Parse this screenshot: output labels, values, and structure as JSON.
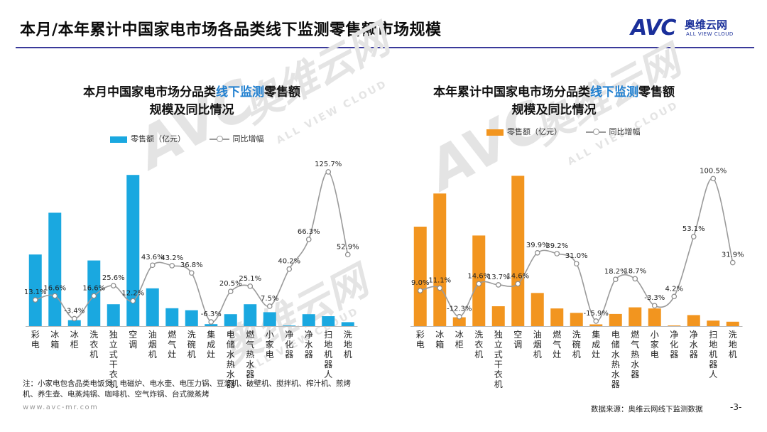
{
  "header": {
    "title": "本月/本年累计中国家电市场各品类线下监测零售额市场规模",
    "logo_mark": "AVC",
    "logo_cn": "奥维云网",
    "logo_en": "ALL VIEW CLOUD"
  },
  "watermark": {
    "mark": "AVC",
    "cn": "奥维云网",
    "en": "ALL VIEW CLOUD"
  },
  "legend": {
    "bar_label": "零售额（亿元）",
    "line_label": "同比增幅"
  },
  "chart_data": [
    {
      "type": "bar",
      "title_prefix": "本月中国家电市场分品类",
      "title_highlight": "线下监测",
      "title_suffix": "零售额",
      "title_line2": "规模及同比情况",
      "bar_color": "#1aa8e0",
      "line_color": "#9a9a9a",
      "categories": [
        "彩电",
        "冰箱",
        "冰柜",
        "洗衣机",
        "独立式干衣机",
        "空调",
        "油烟机",
        "燃气灶",
        "洗碗机",
        "集成灶",
        "电储水热水器",
        "燃气热水器",
        "小家电",
        "净化器",
        "净水器",
        "扫地机器人",
        "洗地机"
      ],
      "series": [
        {
          "name": "零售额（亿元）",
          "kind": "bar",
          "values": [
            36,
            57,
            3,
            33,
            11,
            76,
            19,
            9,
            8,
            1,
            6,
            11,
            7,
            0.3,
            6,
            5,
            2
          ]
        },
        {
          "name": "同比增幅",
          "kind": "line",
          "values": [
            13.1,
            16.6,
            -3.4,
            16.6,
            25.6,
            12.2,
            43.6,
            43.2,
            36.8,
            -6.3,
            20.5,
            25.1,
            7.5,
            40.2,
            66.3,
            125.7,
            52.9
          ],
          "labels": [
            "13.1%",
            "16.6%",
            "-3.4%",
            "16.6%",
            "25.6%",
            "12.2%",
            "43.6%",
            "43.2%",
            "36.8%",
            "-6.3%",
            "20.5%",
            "25.1%",
            "7.5%",
            "40.2%",
            "66.3%",
            "125.7%",
            "52.9%"
          ]
        }
      ],
      "ylim_bar": [
        0,
        80
      ],
      "ylim_line": [
        -10,
        130
      ]
    },
    {
      "type": "bar",
      "title_prefix": "本年累计中国家电市场分品类",
      "title_highlight": "线下监测",
      "title_suffix": "零售额",
      "title_line2": "规模及同比情况",
      "bar_color": "#f2951f",
      "line_color": "#9a9a9a",
      "categories": [
        "彩电",
        "冰箱",
        "冰柜",
        "洗衣机",
        "独立式干衣机",
        "空调",
        "油烟机",
        "燃气灶",
        "洗碗机",
        "集成灶",
        "电储水热水器",
        "燃气热水器",
        "小家电",
        "净化器",
        "净水器",
        "扫地机器人",
        "洗地机"
      ],
      "series": [
        {
          "name": "零售额（亿元）",
          "kind": "bar",
          "values": [
            450,
            600,
            40,
            410,
            90,
            680,
            150,
            80,
            60,
            8,
            55,
            85,
            80,
            3,
            50,
            25,
            20
          ]
        },
        {
          "name": "同比增幅",
          "kind": "line",
          "values": [
            9.0,
            11.1,
            -12.3,
            14.6,
            13.7,
            14.6,
            39.9,
            39.2,
            31.0,
            -15.9,
            18.2,
            18.7,
            -3.3,
            4.2,
            53.1,
            100.5,
            31.9
          ],
          "labels": [
            "9.0%",
            "11.1%",
            "-12.3%",
            "14.6%",
            "13.7%",
            "14.6%",
            "39.9%",
            "39.2%",
            "31.0%",
            "-15.9%",
            "18.2%",
            "18.7%",
            "-3.3%",
            "4.2%",
            "53.1%",
            "100.5%",
            "31.9%"
          ]
        }
      ],
      "ylim_bar": [
        0,
        720
      ],
      "ylim_line": [
        -20,
        110
      ]
    }
  ],
  "footnote": "注：小家电包含品类电饭煲、电磁炉、电水壶、电压力锅、豆浆机、破壁机、搅拌机、榨汁机、煎烤机、养生壶、电蒸炖锅、咖啡机、空气炸锅、台式微蒸烤",
  "footer": {
    "url": "www.avc-mr.com",
    "source": "数据来源：奥维云网线下监测数据",
    "page": "-3-"
  }
}
